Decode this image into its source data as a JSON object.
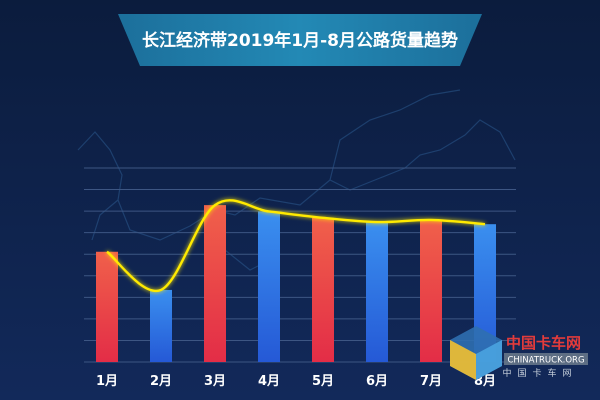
{
  "chart_data": {
    "type": "bar",
    "title": "长江经济带2019年1月-8月公路货量趋势",
    "categories": [
      "1月",
      "2月",
      "3月",
      "4月",
      "5月",
      "6月",
      "7月",
      "8月"
    ],
    "values": [
      52,
      34,
      74,
      71,
      68,
      66,
      67,
      65
    ],
    "overlay_line": true,
    "ylim": [
      0,
      100
    ],
    "grid": true,
    "colors": {
      "odd_bar_top": "#f0604a",
      "odd_bar_bottom": "#e32d47",
      "even_bar_top": "#3a8fef",
      "even_bar_bottom": "#2559d6",
      "line": "#ffea00",
      "background": "#0d2146",
      "title_banner": "#1e7aa6"
    }
  },
  "watermark": {
    "brand": "中国卡车网",
    "url": "CHINATRUCK.ORG",
    "tagline": "中国卡车网"
  }
}
